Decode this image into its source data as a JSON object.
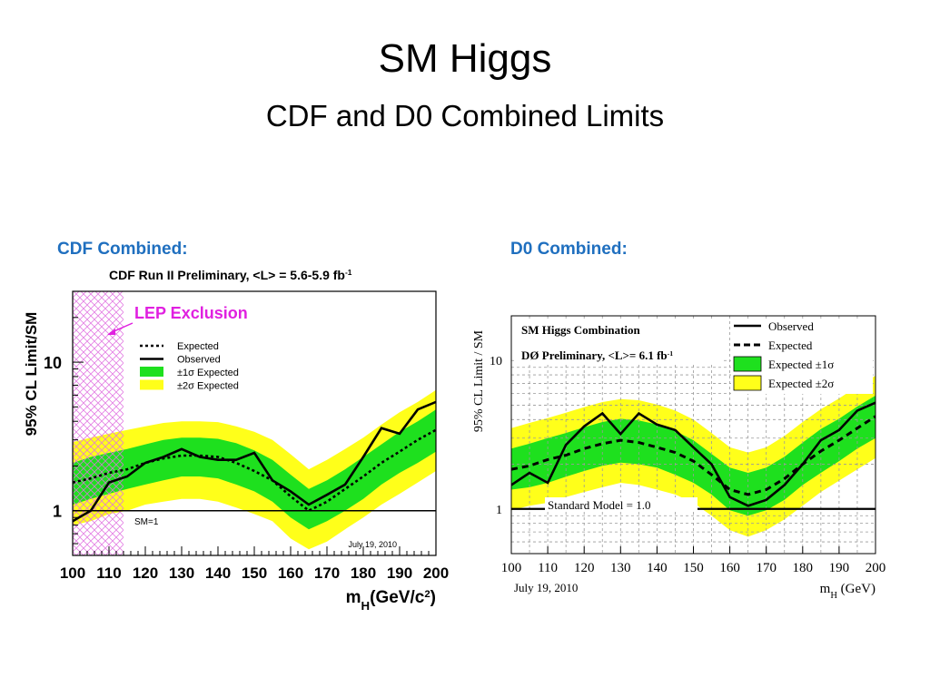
{
  "title": "SM Higgs",
  "subtitle": "CDF and D0 Combined Limits",
  "cdf": {
    "panel_label": "CDF Combined:",
    "header_prefix": "CDF Run II Preliminary, <L> = 5.6-5.9 fb",
    "header_sup": "-1",
    "lep_label": "LEP Exclusion",
    "sm_line_label": "SM=1",
    "date": "July 19, 2010",
    "ylabel": "95% CL Limit/SM",
    "xlabel_main": "m",
    "xlabel_sub": "H",
    "xlabel_rest": "(GeV/c",
    "xlabel_sup": "2",
    "xlabel_close": ")",
    "legend": [
      {
        "label": "Expected",
        "style": "dotted"
      },
      {
        "label": "Observed",
        "style": "solid"
      },
      {
        "label": "±1σ Expected",
        "style": "green"
      },
      {
        "label": "±2σ Expected",
        "style": "yellow"
      }
    ]
  },
  "d0": {
    "panel_label": "D0 Combined:",
    "header1": "SM Higgs Combination",
    "header2_prefix": "DØ Preliminary, <L>= 6.1 fb",
    "header2_sup": "-1",
    "sm_line_label": "Standard Model = 1.0",
    "date": "July 19, 2010",
    "ylabel": "95% CL Limit / SM",
    "xlabel_main": "m",
    "xlabel_sub": "H",
    "xlabel_rest": " (GeV)",
    "legend": [
      {
        "label": "Observed",
        "style": "solid"
      },
      {
        "label": "Expected",
        "style": "dashed"
      },
      {
        "label": "Expected ±1σ",
        "style": "green"
      },
      {
        "label": "Expected ±2σ",
        "style": "yellow"
      }
    ]
  },
  "colors": {
    "green": "#1ee01e",
    "yellow": "#ffff1a",
    "lep": "#e070e0",
    "panel_label": "#1f6fbf",
    "lep_text": "#e020e0"
  },
  "chart_data": [
    {
      "type": "line",
      "title": "CDF Run II Preliminary, <L> = 5.6-5.9 fb-1",
      "xlabel": "mH(GeV/c2)",
      "ylabel": "95% CL Limit/SM",
      "xlim": [
        100,
        200
      ],
      "ylim": [
        0.5,
        30
      ],
      "log_y": true,
      "x_ticks": [
        100,
        110,
        120,
        130,
        140,
        150,
        160,
        170,
        180,
        190,
        200
      ],
      "y_ticks": [
        1,
        10
      ],
      "grid": false,
      "legend_position": "top-left",
      "lep_exclusion": [
        100,
        114
      ],
      "x": [
        100,
        105,
        110,
        115,
        120,
        125,
        130,
        135,
        140,
        145,
        150,
        155,
        160,
        165,
        170,
        175,
        180,
        185,
        190,
        195,
        200
      ],
      "series": [
        {
          "name": "Observed",
          "values": [
            0.85,
            1.0,
            1.55,
            1.7,
            2.1,
            2.3,
            2.6,
            2.3,
            2.2,
            2.2,
            2.45,
            1.6,
            1.35,
            1.1,
            1.28,
            1.5,
            2.3,
            3.6,
            3.3,
            4.8,
            5.4
          ]
        },
        {
          "name": "Expected",
          "values": [
            1.55,
            1.65,
            1.8,
            1.9,
            2.1,
            2.25,
            2.35,
            2.35,
            2.3,
            2.1,
            1.85,
            1.6,
            1.25,
            1.0,
            1.15,
            1.4,
            1.7,
            2.1,
            2.5,
            3.0,
            3.5
          ]
        },
        {
          "name": "±1σ Expected",
          "lower": [
            1.1,
            1.2,
            1.3,
            1.4,
            1.5,
            1.6,
            1.7,
            1.7,
            1.65,
            1.5,
            1.35,
            1.15,
            0.9,
            0.75,
            0.85,
            1.0,
            1.2,
            1.5,
            1.8,
            2.1,
            2.5
          ],
          "upper": [
            2.1,
            2.3,
            2.45,
            2.6,
            2.8,
            3.0,
            3.1,
            3.1,
            3.05,
            2.85,
            2.55,
            2.2,
            1.75,
            1.4,
            1.6,
            1.9,
            2.3,
            2.8,
            3.4,
            4.0,
            4.8
          ]
        },
        {
          "name": "±2σ Expected",
          "lower": [
            0.8,
            0.85,
            0.95,
            1.0,
            1.1,
            1.15,
            1.2,
            1.2,
            1.15,
            1.05,
            0.95,
            0.85,
            0.65,
            0.55,
            0.62,
            0.75,
            0.9,
            1.1,
            1.3,
            1.55,
            1.85
          ],
          "upper": [
            2.9,
            3.1,
            3.3,
            3.5,
            3.7,
            3.9,
            4.0,
            4.0,
            3.95,
            3.7,
            3.4,
            3.0,
            2.4,
            1.9,
            2.2,
            2.6,
            3.1,
            3.8,
            4.6,
            5.4,
            6.5
          ]
        }
      ]
    },
    {
      "type": "line",
      "title": "SM Higgs Combination — DØ Preliminary, <L>= 6.1 fb-1",
      "xlabel": "mH (GeV)",
      "ylabel": "95% CL Limit / SM",
      "xlim": [
        100,
        200
      ],
      "ylim": [
        0.5,
        20
      ],
      "log_y": true,
      "x_ticks": [
        100,
        110,
        120,
        130,
        140,
        150,
        160,
        170,
        180,
        190,
        200
      ],
      "y_ticks": [
        1,
        10
      ],
      "grid": true,
      "legend_position": "top-right",
      "x": [
        100,
        105,
        110,
        115,
        120,
        125,
        130,
        135,
        140,
        145,
        150,
        155,
        160,
        165,
        170,
        175,
        180,
        185,
        190,
        195,
        200
      ],
      "series": [
        {
          "name": "Observed",
          "values": [
            1.45,
            1.75,
            1.5,
            2.7,
            3.6,
            4.4,
            3.2,
            4.4,
            3.7,
            3.4,
            2.6,
            2.0,
            1.2,
            1.05,
            1.15,
            1.45,
            2.0,
            2.9,
            3.4,
            4.6,
            5.2
          ]
        },
        {
          "name": "Expected",
          "values": [
            1.85,
            1.95,
            2.15,
            2.3,
            2.55,
            2.75,
            2.9,
            2.8,
            2.6,
            2.4,
            2.1,
            1.7,
            1.35,
            1.25,
            1.35,
            1.6,
            2.0,
            2.45,
            2.9,
            3.5,
            4.2
          ]
        },
        {
          "name": "Expected ±1σ",
          "lower": [
            1.35,
            1.4,
            1.5,
            1.65,
            1.8,
            1.95,
            2.05,
            2.0,
            1.9,
            1.7,
            1.5,
            1.25,
            0.98,
            0.9,
            0.98,
            1.15,
            1.45,
            1.75,
            2.1,
            2.55,
            3.0
          ],
          "upper": [
            2.55,
            2.75,
            3.0,
            3.25,
            3.55,
            3.85,
            4.05,
            3.95,
            3.7,
            3.35,
            2.9,
            2.35,
            1.9,
            1.75,
            1.9,
            2.25,
            2.8,
            3.45,
            4.05,
            4.9,
            5.8
          ]
        },
        {
          "name": "Expected ±2σ",
          "lower": [
            0.98,
            1.05,
            1.1,
            1.2,
            1.3,
            1.4,
            1.5,
            1.45,
            1.35,
            1.25,
            1.1,
            0.9,
            0.72,
            0.65,
            0.72,
            0.85,
            1.05,
            1.3,
            1.55,
            1.85,
            2.2
          ],
          "upper": [
            3.5,
            3.8,
            4.1,
            4.45,
            4.85,
            5.25,
            5.5,
            5.4,
            5.05,
            4.6,
            4.0,
            3.25,
            2.6,
            2.4,
            2.6,
            3.1,
            3.85,
            4.7,
            5.55,
            6.7,
            7.9
          ]
        }
      ]
    }
  ]
}
